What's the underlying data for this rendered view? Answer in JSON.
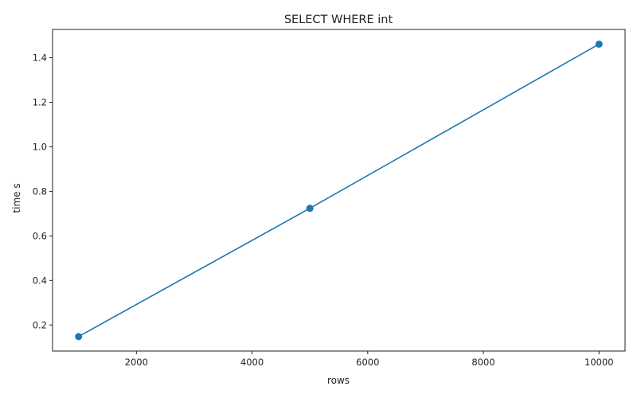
{
  "chart_data": {
    "type": "line",
    "title": "SELECT WHERE int",
    "xlabel": "rows",
    "ylabel": "time s",
    "xlim": [
      550,
      10450
    ],
    "ylim": [
      0.083,
      1.527
    ],
    "xticks": [
      2000,
      4000,
      6000,
      8000,
      10000
    ],
    "yticks": [
      0.2,
      0.4,
      0.6,
      0.8,
      1.0,
      1.2,
      1.4
    ],
    "grid": false,
    "series": [
      {
        "x": [
          1000,
          5000,
          10000
        ],
        "y": [
          0.148,
          0.724,
          1.461
        ],
        "color": "#1f77b4",
        "marker": "circle"
      }
    ]
  }
}
